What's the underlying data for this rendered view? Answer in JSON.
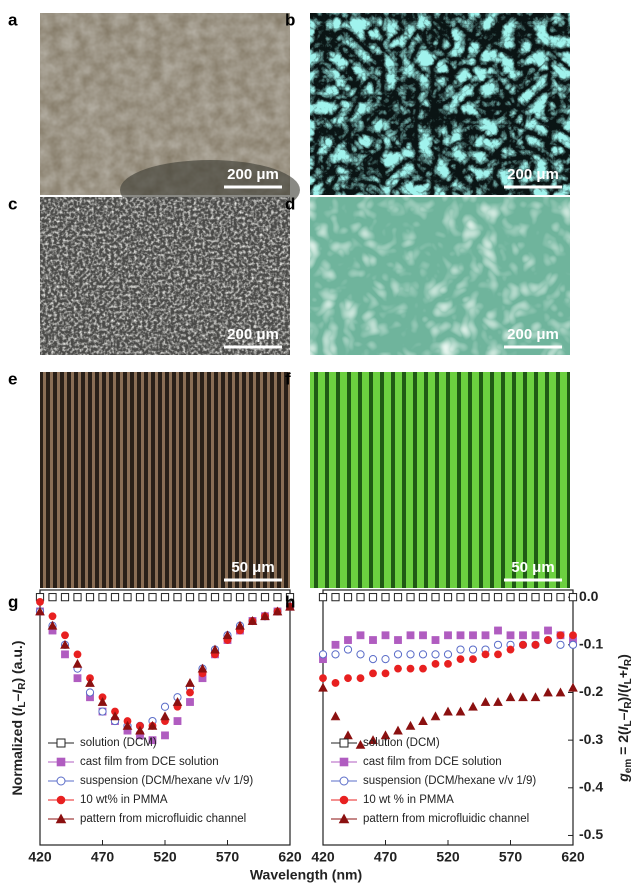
{
  "panels": [
    {
      "label": "a",
      "scale_bar": "200 μm"
    },
    {
      "label": "b",
      "scale_bar": "200 μm"
    },
    {
      "label": "c",
      "scale_bar": "200 μm"
    },
    {
      "label": "d",
      "scale_bar": "200 μm"
    },
    {
      "label": "e",
      "scale_bar": "50 μm"
    },
    {
      "label": "f",
      "scale_bar": "50 μm"
    }
  ],
  "xlabel": "Wavelength (nm)",
  "chart_data": [
    {
      "type": "scatter",
      "panel": "g",
      "ylabel": [
        "Normalized (",
        "I",
        "L",
        "–",
        "I",
        "R",
        ") (a.u.)"
      ],
      "x": [
        420,
        430,
        440,
        450,
        460,
        470,
        480,
        490,
        500,
        510,
        520,
        530,
        540,
        550,
        560,
        570,
        580,
        590,
        600,
        610,
        620
      ],
      "xlim": [
        420,
        620
      ],
      "xticks": [
        420,
        470,
        520,
        570,
        620
      ],
      "ylim": [
        -0.52,
        0.015
      ],
      "series": [
        {
          "name": "solution (DCM)",
          "color": "#222222",
          "marker": "square-open",
          "values": [
            0,
            0,
            0,
            0,
            0,
            0,
            0,
            0,
            0,
            0,
            0,
            0,
            0,
            0,
            0,
            0,
            0,
            0,
            0,
            0,
            0
          ]
        },
        {
          "name": "cast film from DCE solution",
          "color": "#b05cc0",
          "marker": "square",
          "values": [
            -0.03,
            -0.07,
            -0.12,
            -0.17,
            -0.21,
            -0.24,
            -0.26,
            -0.28,
            -0.29,
            -0.3,
            -0.29,
            -0.26,
            -0.22,
            -0.17,
            -0.12,
            -0.09,
            -0.07,
            -0.05,
            -0.04,
            -0.03,
            -0.02
          ]
        },
        {
          "name": "suspension (DCM/hexane v/v 1/9)",
          "color": "#5a6cc8",
          "marker": "circle-open",
          "values": [
            -0.03,
            -0.06,
            -0.1,
            -0.15,
            -0.2,
            -0.24,
            -0.26,
            -0.27,
            -0.27,
            -0.26,
            -0.23,
            -0.21,
            -0.19,
            -0.15,
            -0.11,
            -0.08,
            -0.06,
            -0.05,
            -0.04,
            -0.03,
            -0.02
          ]
        },
        {
          "name": "10 wt% in PMMA",
          "color": "#e82020",
          "marker": "circle",
          "values": [
            -0.01,
            -0.04,
            -0.08,
            -0.12,
            -0.17,
            -0.21,
            -0.24,
            -0.26,
            -0.27,
            -0.27,
            -0.26,
            -0.23,
            -0.2,
            -0.16,
            -0.12,
            -0.09,
            -0.07,
            -0.05,
            -0.04,
            -0.03,
            -0.02
          ]
        },
        {
          "name": "pattern from microfluidic channel",
          "color": "#8b1010",
          "marker": "triangle",
          "values": [
            -0.03,
            -0.06,
            -0.1,
            -0.14,
            -0.18,
            -0.22,
            -0.25,
            -0.27,
            -0.28,
            -0.27,
            -0.25,
            -0.22,
            -0.18,
            -0.15,
            -0.11,
            -0.08,
            -0.06,
            -0.05,
            -0.04,
            -0.03,
            -0.02
          ]
        }
      ]
    },
    {
      "type": "scatter",
      "panel": "h",
      "y2label": [
        "g",
        "em",
        " = 2(",
        "I",
        "L",
        "–",
        "I",
        "R",
        ")/(",
        "I",
        "L",
        "+",
        "I",
        "R",
        ")"
      ],
      "x": [
        420,
        430,
        440,
        450,
        460,
        470,
        480,
        490,
        500,
        510,
        520,
        530,
        540,
        550,
        560,
        570,
        580,
        590,
        600,
        610,
        620
      ],
      "xlim": [
        420,
        620
      ],
      "xticks": [
        420,
        470,
        520,
        570,
        620
      ],
      "ylim": [
        -0.52,
        0.015
      ],
      "yticks": [
        {
          "value": 0,
          "label": "0.0"
        },
        -0.1,
        -0.2,
        -0.3,
        -0.4,
        -0.5
      ],
      "series": [
        {
          "name": "solution (DCM)",
          "color": "#222222",
          "marker": "square-open",
          "values": [
            0,
            0,
            0,
            0,
            0,
            0,
            0,
            0,
            0,
            0,
            0,
            0,
            0,
            0,
            0,
            0,
            0,
            0,
            0,
            0,
            0
          ]
        },
        {
          "name": "cast film from DCE solution",
          "color": "#b05cc0",
          "marker": "square",
          "values": [
            -0.13,
            -0.1,
            -0.09,
            -0.08,
            -0.09,
            -0.08,
            -0.09,
            -0.08,
            -0.08,
            -0.09,
            -0.08,
            -0.08,
            -0.08,
            -0.08,
            -0.07,
            -0.08,
            -0.08,
            -0.08,
            -0.07,
            -0.08,
            -0.09
          ]
        },
        {
          "name": "suspension (DCM/hexane v/v 1/9)",
          "color": "#5a6cc8",
          "marker": "circle-open",
          "values": [
            -0.12,
            -0.12,
            -0.11,
            -0.12,
            -0.13,
            -0.13,
            -0.12,
            -0.12,
            -0.12,
            -0.12,
            -0.12,
            -0.11,
            -0.11,
            -0.11,
            -0.1,
            -0.1,
            -0.1,
            -0.1,
            -0.09,
            -0.1,
            -0.1
          ]
        },
        {
          "name": "10 wt % in PMMA",
          "color": "#e82020",
          "marker": "circle",
          "values": [
            -0.17,
            -0.18,
            -0.17,
            -0.17,
            -0.16,
            -0.16,
            -0.15,
            -0.15,
            -0.15,
            -0.14,
            -0.14,
            -0.13,
            -0.13,
            -0.12,
            -0.12,
            -0.11,
            -0.1,
            -0.1,
            -0.09,
            -0.08,
            -0.08
          ]
        },
        {
          "name": "pattern from microfluidic channel",
          "color": "#8b1010",
          "marker": "triangle",
          "values": [
            -0.19,
            -0.25,
            -0.29,
            -0.31,
            -0.3,
            -0.29,
            -0.28,
            -0.27,
            -0.26,
            -0.25,
            -0.24,
            -0.24,
            -0.23,
            -0.22,
            -0.22,
            -0.21,
            -0.21,
            -0.21,
            -0.2,
            -0.2,
            -0.19
          ]
        }
      ]
    }
  ]
}
